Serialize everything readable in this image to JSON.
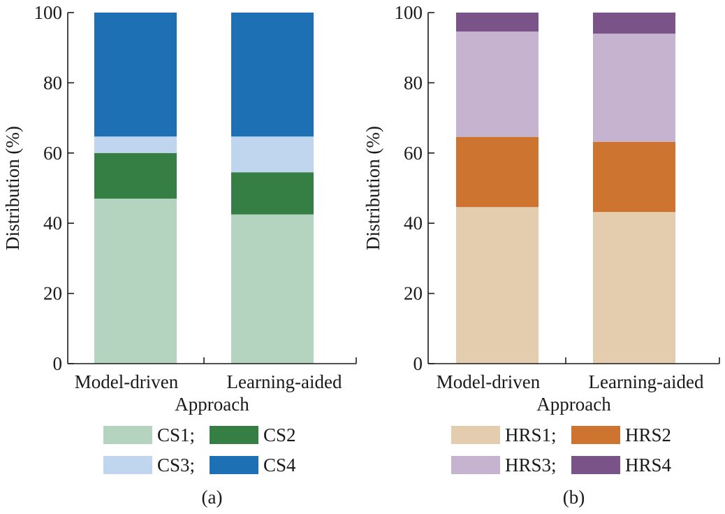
{
  "chart_data": [
    {
      "type": "bar",
      "stacked": true,
      "panel_label": "(a)",
      "categories": [
        "Model-driven",
        "Learning-aided"
      ],
      "xlabel": "Approach",
      "ylabel": "Distribution (%)",
      "ylim": [
        0,
        100
      ],
      "yticks": [
        0,
        20,
        40,
        60,
        80,
        100
      ],
      "grid": false,
      "legend_position": "bottom",
      "legend_labels": [
        "CS1;",
        "CS2",
        "CS3;",
        "CS4"
      ],
      "series": [
        {
          "name": "CS1",
          "color": "#b4d4c0",
          "values": [
            47,
            42.5
          ]
        },
        {
          "name": "CS2",
          "color": "#357e44",
          "values": [
            13,
            12
          ]
        },
        {
          "name": "CS3",
          "color": "#c0d5ee",
          "values": [
            4.7,
            10.2
          ]
        },
        {
          "name": "CS4",
          "color": "#1d70b3",
          "values": [
            35.3,
            35.3
          ]
        }
      ]
    },
    {
      "type": "bar",
      "stacked": true,
      "panel_label": "(b)",
      "categories": [
        "Model-driven",
        "Learning-aided"
      ],
      "xlabel": "Approach",
      "ylabel": "Distribution (%)",
      "ylim": [
        0,
        100
      ],
      "yticks": [
        0,
        20,
        40,
        60,
        80,
        100
      ],
      "grid": false,
      "legend_position": "bottom",
      "legend_labels": [
        "HRS1;",
        "HRS2",
        "HRS3;",
        "HRS4"
      ],
      "series": [
        {
          "name": "HRS1",
          "color": "#e4ccae",
          "values": [
            44.6,
            43.2
          ]
        },
        {
          "name": "HRS2",
          "color": "#cd7530",
          "values": [
            20,
            20
          ]
        },
        {
          "name": "HRS3",
          "color": "#c5b3cf",
          "values": [
            30,
            30.8
          ]
        },
        {
          "name": "HRS4",
          "color": "#7a5488",
          "values": [
            5.4,
            6
          ]
        }
      ]
    }
  ]
}
